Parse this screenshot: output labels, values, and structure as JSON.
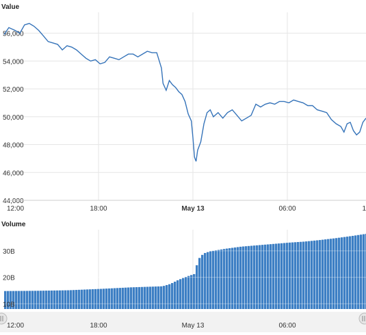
{
  "chart_data": [
    {
      "type": "line",
      "title": "Value",
      "ylim": [
        44000,
        57500
      ],
      "y_ticks": [
        "44,000",
        "46,000",
        "48,000",
        "50,000",
        "52,000",
        "54,000",
        "56,000"
      ],
      "y_tick_values": [
        44000,
        46000,
        48000,
        50000,
        52000,
        54000,
        56000
      ],
      "x_ticks": [
        "12:00",
        "18:00",
        "May 13",
        "06:00",
        "1"
      ],
      "x_range_hours": [
        0,
        23
      ],
      "grid": true,
      "series": [
        {
          "color": "#3573b9",
          "x_hours": [
            0,
            0.3,
            0.7,
            1.0,
            1.3,
            1.6,
            1.9,
            2.2,
            2.5,
            2.8,
            3.1,
            3.4,
            3.7,
            4.0,
            4.3,
            4.6,
            4.9,
            5.2,
            5.5,
            5.8,
            6.1,
            6.4,
            6.7,
            7.0,
            7.3,
            7.6,
            7.9,
            8.2,
            8.5,
            8.8,
            9.1,
            9.4,
            9.7,
            10.0,
            10.1,
            10.3,
            10.5,
            10.7,
            10.9,
            11.1,
            11.3,
            11.5,
            11.7,
            11.9,
            12.0,
            12.1,
            12.2,
            12.3,
            12.5,
            12.7,
            12.9,
            13.1,
            13.3,
            13.6,
            13.9,
            14.2,
            14.5,
            14.8,
            15.1,
            15.4,
            15.7,
            16.0,
            16.3,
            16.6,
            16.9,
            17.2,
            17.5,
            17.8,
            18.1,
            18.4,
            18.7,
            19.0,
            19.3,
            19.6,
            19.9,
            20.2,
            20.5,
            20.8,
            21.1,
            21.4,
            21.6,
            21.8,
            22.0,
            22.2,
            22.4,
            22.6,
            22.8,
            23.0
          ],
          "values": [
            55900,
            56400,
            56200,
            56000,
            56600,
            56700,
            56500,
            56200,
            55800,
            55400,
            55300,
            55200,
            54800,
            55100,
            55000,
            54800,
            54500,
            54200,
            54000,
            54100,
            53800,
            53900,
            54300,
            54200,
            54100,
            54300,
            54500,
            54500,
            54300,
            54500,
            54700,
            54600,
            54600,
            53500,
            52400,
            51900,
            52600,
            52300,
            52100,
            51800,
            51600,
            51100,
            50200,
            49700,
            48500,
            47100,
            46800,
            47600,
            48200,
            49500,
            50300,
            50500,
            50000,
            50300,
            49900,
            50300,
            50500,
            50100,
            49700,
            49900,
            50100,
            50900,
            50700,
            50900,
            51000,
            50900,
            51100,
            51100,
            51000,
            51200,
            51100,
            51000,
            50800,
            50800,
            50500,
            50400,
            50300,
            49800,
            49500,
            49300,
            48900,
            49500,
            49600,
            49000,
            48700,
            48900,
            49600,
            49900
          ]
        }
      ]
    },
    {
      "type": "area",
      "title": "Volume",
      "ylim": [
        8000000000,
        38000000000
      ],
      "y_ticks": [
        "10B",
        "20B",
        "30B"
      ],
      "y_tick_values": [
        10000000000,
        20000000000,
        30000000000
      ],
      "x_ticks": [
        "12:00",
        "18:00",
        "May 13",
        "06:00"
      ],
      "x_range_hours": [
        0,
        23
      ],
      "grid": true,
      "series": [
        {
          "color": "#3d7fc4",
          "x_hours": [
            0,
            2,
            4,
            6,
            8,
            10,
            10.5,
            11,
            11.5,
            12,
            12.3,
            12.6,
            13,
            14,
            15,
            16,
            17,
            18,
            19,
            20,
            21,
            22,
            23
          ],
          "values": [
            14800000000,
            14900000000,
            15100000000,
            15600000000,
            16200000000,
            16600000000,
            17500000000,
            19000000000,
            20200000000,
            21200000000,
            27000000000,
            29000000000,
            29800000000,
            30800000000,
            31600000000,
            32100000000,
            32600000000,
            33100000000,
            33500000000,
            34100000000,
            34800000000,
            35600000000,
            36500000000
          ]
        }
      ]
    }
  ],
  "icons": {
    "navigator_left": "navigator-left-handle-icon",
    "navigator_right": "navigator-right-handle-icon"
  }
}
